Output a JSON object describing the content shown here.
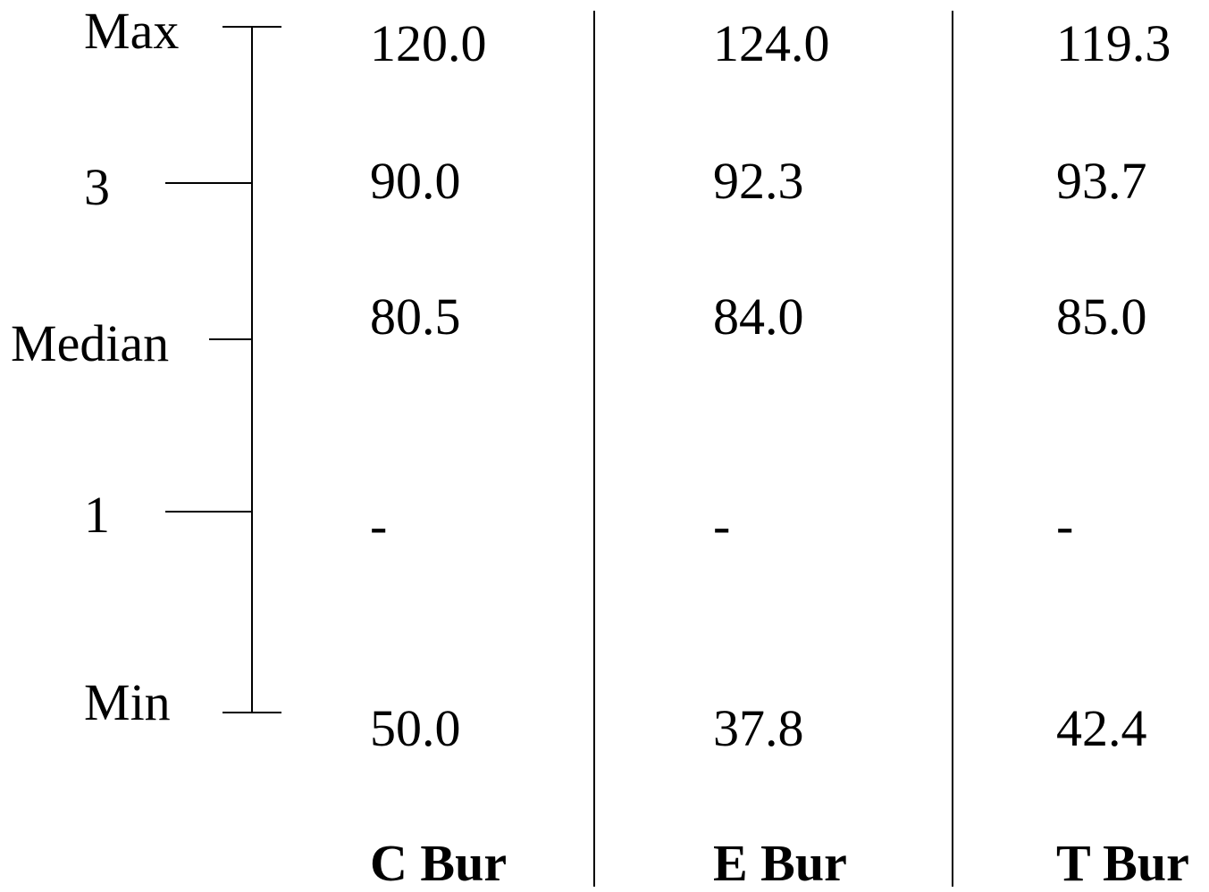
{
  "scale": {
    "labels": {
      "max": "Max",
      "q3": "3",
      "median": "Median",
      "q1": "1",
      "min": "Min"
    }
  },
  "columns": [
    {
      "name": "C Bur",
      "max": "120.0",
      "q3": "90.0",
      "median": "80.5",
      "q1": "-",
      "min": "50.0"
    },
    {
      "name": "E Bur",
      "max": "124.0",
      "q3": "92.3",
      "median": "84.0",
      "q1": "-",
      "min": "37.8"
    },
    {
      "name": "T Bur",
      "max": "119.3",
      "q3": "93.7",
      "median": "85.0",
      "q1": "-",
      "min": "42.4"
    }
  ]
}
